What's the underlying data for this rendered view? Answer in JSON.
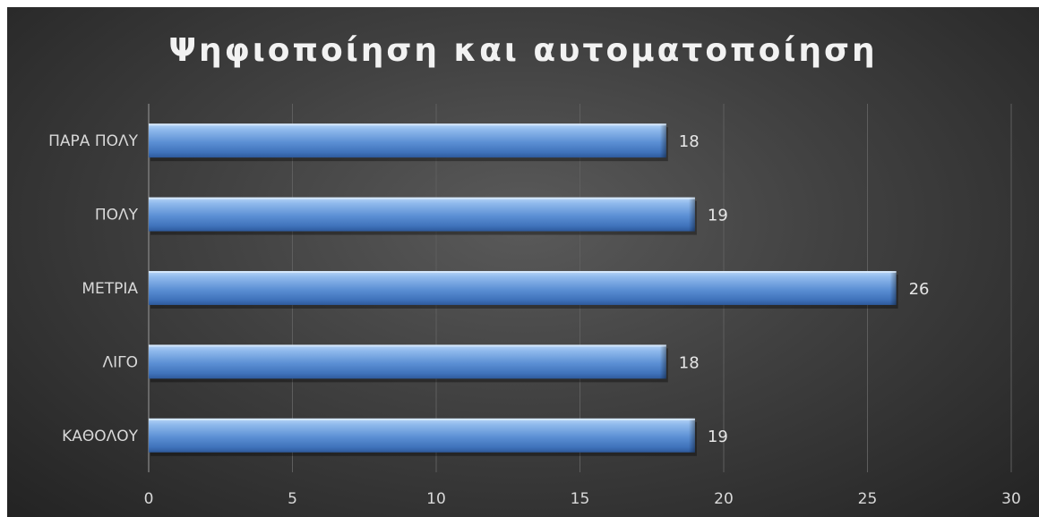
{
  "chart_data": {
    "type": "bar",
    "orientation": "horizontal",
    "title": "Ψηφιοποίηση και αυτοματοποίηση",
    "categories": [
      "ΚΑΘΟΛΟΥ",
      "ΛΙΓΟ",
      "ΜΕΤΡΙΑ",
      "ΠΟΛΥ",
      "ΠΑΡΑ ΠΟΛΥ"
    ],
    "values": [
      19,
      18,
      26,
      19,
      18
    ],
    "xlim": [
      0,
      30
    ],
    "xticks": [
      0,
      5,
      10,
      15,
      20,
      25,
      30
    ],
    "grid": "vertical",
    "legend": "none",
    "colors": {
      "bar": "#5b8fd4",
      "bar_highlight": "#9cc3f0",
      "bar_shadow": "#2e5a9c",
      "background": "#3f3f3f",
      "text": "#d9d9d9",
      "title": "#f2f2f2"
    }
  }
}
